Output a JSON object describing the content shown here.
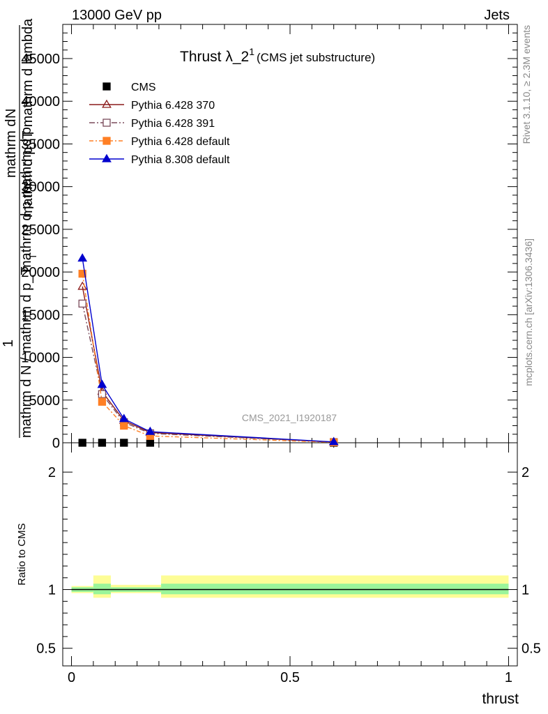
{
  "header": {
    "left": "13000 GeV pp",
    "right": "Jets"
  },
  "title": {
    "main": "Thrust λ_2",
    "superscript": "1",
    "suffix": "(CMS jet substructure)"
  },
  "side_labels": {
    "rivet": "Rivet 3.1.10, ≥ 2.3M events",
    "source": "mcplots.cern.ch [arXiv:1306.3436]"
  },
  "watermark": "CMS_2021_I1920187",
  "upper_ylabel": {
    "numerator_line1": "mathrm d",
    "numerator_line2": "N",
    "numerator_line3": "mathrm d p_T mathrm d lambda",
    "numerator_sub": "T",
    "fraction_one": "1",
    "denominator_line1": "mathrm d N / mathrm d p_T",
    "denominator_line2": "mathrm d p mathrm d p",
    "denominator_sub": "T"
  },
  "chart_data": [
    {
      "type": "line",
      "panel": "main",
      "xlim": [
        -0.02,
        1.02
      ],
      "ylim": [
        0,
        49000
      ],
      "yticks": [
        0,
        5000,
        10000,
        15000,
        20000,
        25000,
        30000,
        35000,
        40000,
        45000
      ],
      "ytick_labels": [
        "0",
        "5000",
        "10000",
        "15000",
        "20000",
        "25000",
        "30000",
        "35000",
        "40000",
        "45000"
      ],
      "legend_position": "top-left",
      "series": [
        {
          "name": "CMS",
          "color": "#000000",
          "marker": "square-filled",
          "dash": "",
          "x": [
            0.025,
            0.07,
            0.12,
            0.18,
            0.6
          ],
          "y": [
            0,
            0,
            0,
            0,
            0
          ]
        },
        {
          "name": "Pythia 6.428 370",
          "color": "#8b1a1a",
          "marker": "triangle-open",
          "dash": "",
          "x": [
            0.025,
            0.07,
            0.12,
            0.18,
            0.6
          ],
          "y": [
            18300,
            6000,
            2600,
            1200,
            80
          ]
        },
        {
          "name": "Pythia 6.428 391",
          "color": "#7a4a5a",
          "marker": "square-open",
          "dash": "8 3 2 3",
          "x": [
            0.025,
            0.07,
            0.12,
            0.18,
            0.6
          ],
          "y": [
            16300,
            5700,
            2400,
            1100,
            80
          ]
        },
        {
          "name": "Pythia 6.428 default",
          "color": "#ff7f24",
          "marker": "square-filled",
          "dash": "6 3 2 3",
          "x": [
            0.025,
            0.07,
            0.12,
            0.18,
            0.6
          ],
          "y": [
            19800,
            4800,
            2000,
            800,
            50
          ]
        },
        {
          "name": "Pythia 8.308 default",
          "color": "#0000cd",
          "marker": "triangle-filled",
          "dash": "",
          "x": [
            0.025,
            0.07,
            0.12,
            0.18,
            0.6
          ],
          "y": [
            21600,
            6800,
            2800,
            1300,
            100
          ]
        }
      ]
    },
    {
      "type": "line",
      "panel": "ratio",
      "ylabel": "Ratio to CMS",
      "xlabel": "thrust",
      "xlim": [
        -0.02,
        1.02
      ],
      "ylim": [
        0.35,
        2.25
      ],
      "yticks": [
        0.5,
        1,
        2
      ],
      "ytick_labels": [
        "0.5",
        "1",
        "2"
      ],
      "xticks": [
        0,
        0.5,
        1
      ],
      "xtick_labels": [
        "0",
        "0.5",
        "1"
      ],
      "reference": 1,
      "bands": [
        {
          "x0": 0.0,
          "x1": 0.05,
          "yellow": [
            0.97,
            1.03
          ],
          "green": [
            0.98,
            1.02
          ]
        },
        {
          "x0": 0.05,
          "x1": 0.09,
          "yellow": [
            0.93,
            1.12
          ],
          "green": [
            0.96,
            1.05
          ]
        },
        {
          "x0": 0.09,
          "x1": 0.15,
          "yellow": [
            0.97,
            1.04
          ],
          "green": [
            0.98,
            1.02
          ]
        },
        {
          "x0": 0.15,
          "x1": 0.205,
          "yellow": [
            0.97,
            1.04
          ],
          "green": [
            0.98,
            1.02
          ]
        },
        {
          "x0": 0.205,
          "x1": 1.0,
          "yellow": [
            0.93,
            1.12
          ],
          "green": [
            0.96,
            1.05
          ]
        }
      ],
      "colors": {
        "yellow": "#fdfd96",
        "green": "#9af59a"
      }
    }
  ]
}
